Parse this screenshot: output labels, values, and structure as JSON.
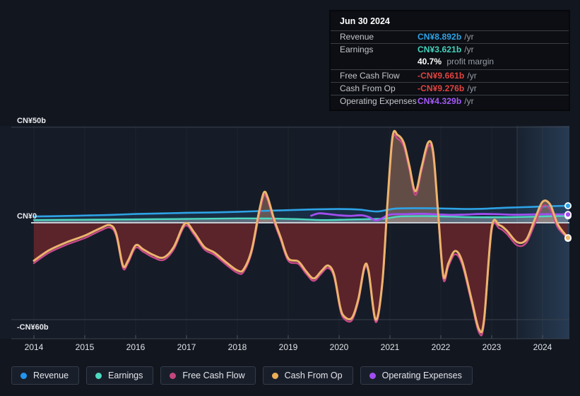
{
  "tooltip": {
    "date": "Jun 30 2024",
    "rows": [
      {
        "label": "Revenue",
        "value": "CN¥8.892b",
        "suffix": "/yr",
        "color": "#2ea3e6"
      },
      {
        "label": "Earnings",
        "value": "CN¥3.621b",
        "suffix": "/yr",
        "color": "#43d3bc"
      },
      {
        "label": "Free Cash Flow",
        "value": "-CN¥9.661b",
        "suffix": "/yr",
        "color": "#e2433f"
      },
      {
        "label": "Cash From Op",
        "value": "-CN¥9.276b",
        "suffix": "/yr",
        "color": "#e2433f"
      },
      {
        "label": "Operating Expenses",
        "value": "CN¥4.329b",
        "suffix": "/yr",
        "color": "#a55bf5"
      }
    ],
    "profit_margin": {
      "value": "40.7%",
      "label": "profit margin"
    }
  },
  "legend": {
    "items": [
      {
        "label": "Revenue",
        "color": "#2196f3"
      },
      {
        "label": "Earnings",
        "color": "#4dd9c0"
      },
      {
        "label": "Free Cash Flow",
        "color": "#c2477f"
      },
      {
        "label": "Cash From Op",
        "color": "#ecaf57"
      },
      {
        "label": "Operating Expenses",
        "color": "#a14ef0"
      }
    ]
  },
  "chart_data": {
    "type": "area",
    "x_unit": "year",
    "x_domain": [
      2014,
      2024.5
    ],
    "x_ticks": [
      2014,
      2015,
      2016,
      2017,
      2018,
      2019,
      2020,
      2021,
      2022,
      2023,
      2024
    ],
    "y_unit": "CN¥ billions /yr",
    "y_ticks": [
      {
        "value": 50,
        "label": "CN¥50b"
      },
      {
        "value": 0,
        "label": "CN¥0"
      },
      {
        "value": -60,
        "label": "-CN¥60b"
      }
    ],
    "highlight_band": {
      "from": 2023.5,
      "to": 2024.53
    },
    "series": [
      {
        "name": "Revenue",
        "color": "#2ea3e6",
        "width": 2.6,
        "endpoint": true,
        "fill": "rgba(42,118,187,0.20)",
        "points": [
          [
            2014,
            3.3
          ],
          [
            2014.5,
            3.5
          ],
          [
            2015,
            3.8
          ],
          [
            2015.5,
            4.1
          ],
          [
            2016,
            4.6
          ],
          [
            2016.5,
            4.9
          ],
          [
            2017,
            5.2
          ],
          [
            2017.5,
            5.4
          ],
          [
            2018,
            5.7
          ],
          [
            2018.5,
            6.2
          ],
          [
            2019,
            6.6
          ],
          [
            2019.5,
            7.0
          ],
          [
            2020,
            7.2
          ],
          [
            2020.4,
            6.9
          ],
          [
            2020.75,
            5.9
          ],
          [
            2021.1,
            7.4
          ],
          [
            2021.6,
            7.6
          ],
          [
            2022,
            7.5
          ],
          [
            2022.5,
            7.2
          ],
          [
            2022.9,
            7.4
          ],
          [
            2023.3,
            7.9
          ],
          [
            2023.8,
            8.3
          ],
          [
            2024.2,
            8.7
          ],
          [
            2024.5,
            8.892
          ]
        ]
      },
      {
        "name": "Earnings",
        "color": "#4dd9c0",
        "width": 2.4,
        "endpoint": true,
        "fill": "rgba(198,206,215,0.38)",
        "points": [
          [
            2014,
            1.4
          ],
          [
            2015,
            1.6
          ],
          [
            2016,
            1.8
          ],
          [
            2017,
            2.0
          ],
          [
            2018,
            2.3
          ],
          [
            2018.7,
            2.2
          ],
          [
            2019.3,
            1.8
          ],
          [
            2019.7,
            1.4
          ],
          [
            2020.2,
            1.7
          ],
          [
            2020.6,
            1.9
          ],
          [
            2020.9,
            2.2
          ],
          [
            2021.2,
            3.3
          ],
          [
            2021.7,
            3.5
          ],
          [
            2022.2,
            3.2
          ],
          [
            2022.7,
            2.9
          ],
          [
            2023.2,
            2.9
          ],
          [
            2023.7,
            3.1
          ],
          [
            2024.1,
            3.4
          ],
          [
            2024.5,
            3.621
          ]
        ]
      },
      {
        "name": "Operating Expenses",
        "color": "#a14ef0",
        "width": 2.8,
        "endpoint": true,
        "points": [
          [
            2019.45,
            3.7
          ],
          [
            2019.6,
            4.9
          ],
          [
            2019.8,
            4.5
          ],
          [
            2020.0,
            3.9
          ],
          [
            2020.2,
            3.6
          ],
          [
            2020.45,
            3.9
          ],
          [
            2020.6,
            2.8
          ],
          [
            2020.72,
            1.2
          ],
          [
            2020.85,
            2.4
          ],
          [
            2021.0,
            4.3
          ],
          [
            2021.3,
            4.5
          ],
          [
            2021.6,
            4.7
          ],
          [
            2021.9,
            4.4
          ],
          [
            2022.2,
            4.1
          ],
          [
            2022.5,
            4.3
          ],
          [
            2022.8,
            4.6
          ],
          [
            2023.1,
            4.5
          ],
          [
            2023.4,
            4.2
          ],
          [
            2023.7,
            4.3
          ],
          [
            2024.1,
            4.5
          ],
          [
            2024.5,
            4.329
          ]
        ]
      },
      {
        "name": "Free Cash Flow",
        "color": "#c9498c",
        "width": 2.4,
        "endpoint": true,
        "points": [
          [
            2014,
            -25
          ],
          [
            2014.3,
            -18.5
          ],
          [
            2014.65,
            -13.5
          ],
          [
            2015,
            -9.5
          ],
          [
            2015.3,
            -5
          ],
          [
            2015.5,
            -3
          ],
          [
            2015.62,
            -8.5
          ],
          [
            2015.75,
            -28
          ],
          [
            2015.85,
            -25
          ],
          [
            2016,
            -15.5
          ],
          [
            2016.15,
            -18
          ],
          [
            2016.35,
            -21.5
          ],
          [
            2016.55,
            -23
          ],
          [
            2016.75,
            -16.5
          ],
          [
            2016.97,
            -2
          ],
          [
            2017.15,
            -7.5
          ],
          [
            2017.35,
            -16.5
          ],
          [
            2017.55,
            -20
          ],
          [
            2017.8,
            -26.5
          ],
          [
            2018,
            -31
          ],
          [
            2018.12,
            -30.5
          ],
          [
            2018.28,
            -18.5
          ],
          [
            2018.42,
            3
          ],
          [
            2018.52,
            14
          ],
          [
            2018.6,
            11.5
          ],
          [
            2018.72,
            0.5
          ],
          [
            2018.85,
            -10.5
          ],
          [
            2019,
            -23.5
          ],
          [
            2019.2,
            -25.5
          ],
          [
            2019.35,
            -31.5
          ],
          [
            2019.5,
            -36
          ],
          [
            2019.65,
            -31.5
          ],
          [
            2019.78,
            -28
          ],
          [
            2019.9,
            -33.5
          ],
          [
            2020.02,
            -53.5
          ],
          [
            2020.1,
            -59.5
          ],
          [
            2020.25,
            -60.5
          ],
          [
            2020.38,
            -48.5
          ],
          [
            2020.5,
            -28.5
          ],
          [
            2020.58,
            -31.5
          ],
          [
            2020.72,
            -61.5
          ],
          [
            2020.85,
            -38.5
          ],
          [
            2020.95,
            8
          ],
          [
            2021.05,
            43
          ],
          [
            2021.15,
            44
          ],
          [
            2021.27,
            40
          ],
          [
            2021.38,
            28
          ],
          [
            2021.5,
            14.5
          ],
          [
            2021.62,
            27
          ],
          [
            2021.75,
            40
          ],
          [
            2021.85,
            35
          ],
          [
            2021.95,
            2
          ],
          [
            2022.05,
            -35
          ],
          [
            2022.15,
            -27
          ],
          [
            2022.28,
            -19.5
          ],
          [
            2022.42,
            -26
          ],
          [
            2022.6,
            -49
          ],
          [
            2022.75,
            -68
          ],
          [
            2022.85,
            -62
          ],
          [
            2023,
            -5
          ],
          [
            2023.15,
            -3.5
          ],
          [
            2023.3,
            -7
          ],
          [
            2023.5,
            -14
          ],
          [
            2023.68,
            -12.5
          ],
          [
            2023.85,
            -0.5
          ],
          [
            2024,
            8.5
          ],
          [
            2024.15,
            7
          ],
          [
            2024.3,
            -3
          ],
          [
            2024.5,
            -9.661
          ]
        ]
      },
      {
        "name": "Cash From Op",
        "color": "#edb46c",
        "width": 3,
        "endpoint": true,
        "fill_positive": "rgba(214,152,118,0.40)",
        "fill_negative": "rgba(95,37,43,0.95)",
        "points": [
          [
            2014,
            -23.5
          ],
          [
            2014.3,
            -17
          ],
          [
            2014.65,
            -12
          ],
          [
            2015,
            -8
          ],
          [
            2015.3,
            -3.5
          ],
          [
            2015.5,
            -1.5
          ],
          [
            2015.62,
            -7
          ],
          [
            2015.75,
            -26.5
          ],
          [
            2015.85,
            -23.5
          ],
          [
            2016,
            -14
          ],
          [
            2016.15,
            -16.5
          ],
          [
            2016.35,
            -20
          ],
          [
            2016.55,
            -21.5
          ],
          [
            2016.75,
            -15
          ],
          [
            2016.97,
            -0.5
          ],
          [
            2017.15,
            -6
          ],
          [
            2017.35,
            -15
          ],
          [
            2017.55,
            -18.5
          ],
          [
            2017.8,
            -25
          ],
          [
            2018,
            -29.5
          ],
          [
            2018.12,
            -29
          ],
          [
            2018.28,
            -17
          ],
          [
            2018.42,
            5
          ],
          [
            2018.52,
            15.8
          ],
          [
            2018.6,
            13
          ],
          [
            2018.72,
            2
          ],
          [
            2018.85,
            -9
          ],
          [
            2019,
            -22
          ],
          [
            2019.2,
            -24
          ],
          [
            2019.35,
            -30
          ],
          [
            2019.5,
            -34.5
          ],
          [
            2019.65,
            -30
          ],
          [
            2019.78,
            -26.5
          ],
          [
            2019.9,
            -32
          ],
          [
            2020.02,
            -52
          ],
          [
            2020.1,
            -58
          ],
          [
            2020.25,
            -59
          ],
          [
            2020.38,
            -47
          ],
          [
            2020.5,
            -27
          ],
          [
            2020.58,
            -30
          ],
          [
            2020.72,
            -60
          ],
          [
            2020.85,
            -37
          ],
          [
            2020.95,
            10
          ],
          [
            2021.05,
            45
          ],
          [
            2021.15,
            46
          ],
          [
            2021.27,
            42
          ],
          [
            2021.38,
            30
          ],
          [
            2021.5,
            16.5
          ],
          [
            2021.62,
            29
          ],
          [
            2021.75,
            42
          ],
          [
            2021.85,
            37
          ],
          [
            2021.95,
            4
          ],
          [
            2022.05,
            -33
          ],
          [
            2022.15,
            -25
          ],
          [
            2022.28,
            -17.5
          ],
          [
            2022.42,
            -24
          ],
          [
            2022.6,
            -47
          ],
          [
            2022.75,
            -66
          ],
          [
            2022.85,
            -60
          ],
          [
            2023,
            -3
          ],
          [
            2023.15,
            -1.5
          ],
          [
            2023.3,
            -5
          ],
          [
            2023.5,
            -12
          ],
          [
            2023.68,
            -10.5
          ],
          [
            2023.85,
            2
          ],
          [
            2024,
            11
          ],
          [
            2024.15,
            9.5
          ],
          [
            2024.3,
            -1
          ],
          [
            2024.5,
            -9.276
          ]
        ]
      }
    ]
  }
}
